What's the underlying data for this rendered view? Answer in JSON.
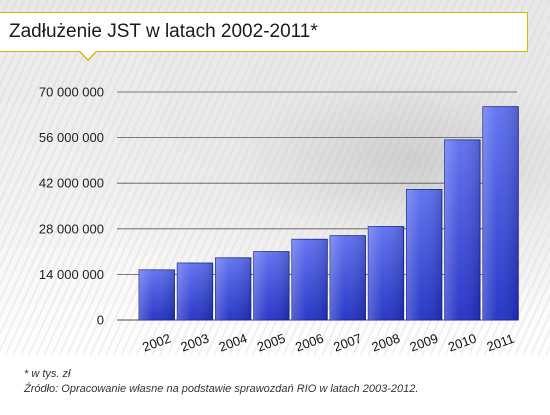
{
  "header": {
    "title": "Zadłużenie JST w latach 2002-2011*"
  },
  "notes": {
    "unit_note": "* w tys. zł",
    "source": "Źródło: Opracowanie własne na podstawie sprawozdań RIO w latach 2003-2012."
  },
  "colors": {
    "bar_top": "#5d6ff0",
    "bar_bottom": "#1f2fc4",
    "bar_edge": "#14208e",
    "grid": "#555555",
    "accent": "#e0b000"
  },
  "chart_data": {
    "type": "bar",
    "title": "Zadłużenie JST w latach 2002-2011*",
    "xlabel": "",
    "ylabel": "",
    "categories": [
      "2002",
      "2003",
      "2004",
      "2005",
      "2006",
      "2007",
      "2008",
      "2009",
      "2010",
      "2011"
    ],
    "values": [
      15400000,
      17500000,
      19100000,
      21000000,
      24800000,
      25900000,
      28700000,
      40100000,
      55300000,
      65500000
    ],
    "yticks": [
      0,
      14000000,
      28000000,
      42000000,
      56000000,
      70000000
    ],
    "ytick_labels": [
      "0",
      "14 000 000",
      "28 000 000",
      "42 000 000",
      "56 000 000",
      "70 000 000"
    ],
    "ylim": [
      0,
      70000000
    ],
    "grid": true,
    "legend": "none"
  }
}
